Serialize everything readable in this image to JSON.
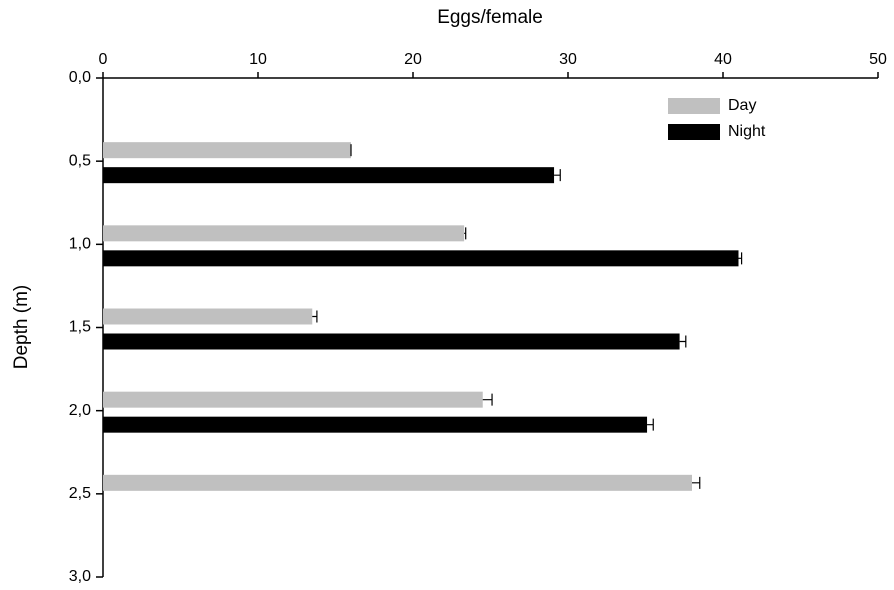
{
  "chart_data": {
    "type": "hbar",
    "x_label": "Eggs/female",
    "y_label": "Depth (m)",
    "y": [
      0.5,
      1.0,
      1.5,
      2.0,
      2.5
    ],
    "series": [
      {
        "name": "Day",
        "color": "#c0c0c0",
        "values": [
          16.0,
          23.3,
          13.5,
          24.5,
          38.0
        ],
        "errors": [
          0,
          0.1,
          0.3,
          0.6,
          0.5
        ]
      },
      {
        "name": "Night",
        "color": "#000000",
        "values": [
          29.1,
          41.0,
          37.2,
          35.1,
          null
        ],
        "errors": [
          0.4,
          0.2,
          0.4,
          0.4,
          null
        ]
      }
    ],
    "xlim": [
      0,
      50
    ],
    "xticks": [
      0,
      10,
      20,
      30,
      40,
      50
    ],
    "ylim": [
      0,
      3
    ],
    "yticks": [
      {
        "value": 0,
        "label": "0,0"
      },
      {
        "value": 0.5,
        "label": "0,5"
      },
      {
        "value": 1,
        "label": "1,0"
      },
      {
        "value": 1.5,
        "label": "1,5"
      },
      {
        "value": 2,
        "label": "2,0"
      },
      {
        "value": 2.5,
        "label": "2,5"
      },
      {
        "value": 3,
        "label": "3,0"
      }
    ],
    "legend": "top-right",
    "grid": false
  }
}
